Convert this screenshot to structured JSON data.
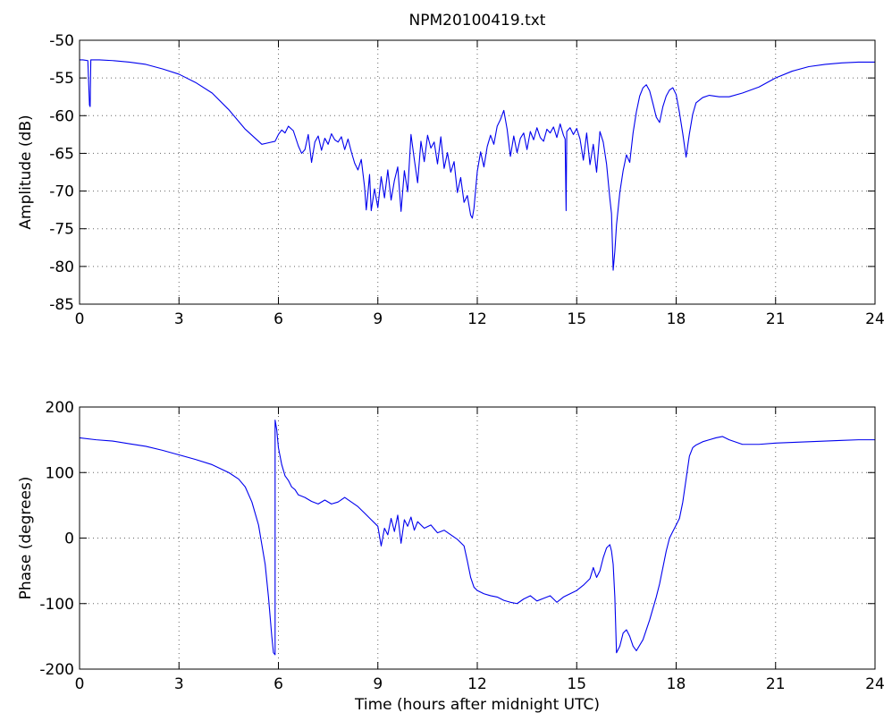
{
  "figure": {
    "title": "NPM20100419.txt"
  },
  "chart_data": [
    {
      "type": "line",
      "title": "NPM20100419.txt",
      "xlabel": "",
      "ylabel": "Amplitude (dB)",
      "xlim": [
        0,
        24
      ],
      "ylim": [
        -85,
        -50
      ],
      "xticks": [
        "0",
        "3",
        "6",
        "9",
        "12",
        "15",
        "18",
        "21",
        "24"
      ],
      "yticks": [
        "-50",
        "-55",
        "-60",
        "-65",
        "-70",
        "-75",
        "-80",
        "-85"
      ],
      "grid": true,
      "color": "#0000ee",
      "series": [
        {
          "x": [
            0,
            0.1,
            0.25,
            0.3,
            0.32,
            0.34,
            0.36,
            0.4,
            0.6,
            1.0,
            1.5,
            2.0,
            2.5,
            3.0,
            3.5,
            4.0,
            4.5,
            5.0,
            5.3,
            5.5,
            5.7,
            5.9,
            6.0,
            6.1,
            6.2,
            6.3,
            6.45,
            6.6,
            6.7,
            6.8,
            6.9,
            7.0,
            7.1,
            7.2,
            7.3,
            7.4,
            7.5,
            7.6,
            7.7,
            7.8,
            7.9,
            8.0,
            8.1,
            8.2,
            8.3,
            8.4,
            8.5,
            8.6,
            8.65,
            8.7,
            8.75,
            8.8,
            8.9,
            9.0,
            9.1,
            9.2,
            9.3,
            9.4,
            9.5,
            9.6,
            9.7,
            9.8,
            9.9,
            10.0,
            10.1,
            10.2,
            10.3,
            10.4,
            10.5,
            10.6,
            10.7,
            10.8,
            10.9,
            11.0,
            11.1,
            11.2,
            11.3,
            11.4,
            11.5,
            11.6,
            11.7,
            11.8,
            11.85,
            11.9,
            12.0,
            12.1,
            12.2,
            12.3,
            12.4,
            12.5,
            12.6,
            12.7,
            12.8,
            12.9,
            13.0,
            13.1,
            13.2,
            13.3,
            13.4,
            13.5,
            13.6,
            13.7,
            13.8,
            13.9,
            14.0,
            14.1,
            14.2,
            14.3,
            14.4,
            14.5,
            14.6,
            14.65,
            14.68,
            14.7,
            14.8,
            14.9,
            15.0,
            15.1,
            15.2,
            15.3,
            15.4,
            15.5,
            15.6,
            15.7,
            15.8,
            15.9,
            16.0,
            16.05,
            16.1,
            16.15,
            16.2,
            16.3,
            16.4,
            16.5,
            16.6,
            16.7,
            16.8,
            16.9,
            17.0,
            17.1,
            17.2,
            17.3,
            17.4,
            17.5,
            17.6,
            17.7,
            17.8,
            17.9,
            18.0,
            18.1,
            18.2,
            18.3,
            18.4,
            18.5,
            18.6,
            18.8,
            19.0,
            19.3,
            19.6,
            20.0,
            20.5,
            21.0,
            21.5,
            22.0,
            22.5,
            23.0,
            23.5,
            24.0
          ],
          "y": [
            -52.6,
            -52.6,
            -52.7,
            -58.6,
            -58.8,
            -52.6,
            -52.6,
            -52.6,
            -52.6,
            -52.7,
            -52.9,
            -53.2,
            -53.8,
            -54.5,
            -55.6,
            -57.0,
            -59.2,
            -61.8,
            -63.0,
            -63.8,
            -63.6,
            -63.4,
            -62.5,
            -61.9,
            -62.3,
            -61.4,
            -62.0,
            -64.0,
            -65.0,
            -64.5,
            -62.5,
            -66.2,
            -63.5,
            -62.7,
            -64.6,
            -63.0,
            -63.8,
            -62.4,
            -63.2,
            -63.5,
            -62.8,
            -64.5,
            -63.1,
            -64.8,
            -66.3,
            -67.2,
            -65.8,
            -69.5,
            -72.5,
            -70.3,
            -67.8,
            -72.6,
            -69.7,
            -72.2,
            -68.1,
            -70.9,
            -67.2,
            -71.2,
            -68.6,
            -66.8,
            -72.7,
            -67.3,
            -70.1,
            -62.5,
            -65.8,
            -68.9,
            -63.4,
            -66.1,
            -62.6,
            -64.3,
            -63.5,
            -66.4,
            -62.8,
            -67.0,
            -64.9,
            -67.5,
            -66.1,
            -70.2,
            -68.2,
            -71.5,
            -70.6,
            -73.2,
            -73.6,
            -72.3,
            -67.4,
            -64.8,
            -66.8,
            -64.1,
            -62.6,
            -63.8,
            -61.4,
            -60.5,
            -59.3,
            -61.8,
            -65.4,
            -62.7,
            -64.9,
            -63.0,
            -62.3,
            -64.5,
            -62.1,
            -63.2,
            -61.6,
            -62.9,
            -63.4,
            -61.8,
            -62.3,
            -61.5,
            -62.9,
            -61.1,
            -62.6,
            -63.1,
            -72.6,
            -62.1,
            -61.6,
            -62.5,
            -61.7,
            -63.1,
            -65.9,
            -62.3,
            -66.5,
            -63.8,
            -67.5,
            -62.1,
            -63.5,
            -66.4,
            -71.0,
            -73.0,
            -80.5,
            -78.0,
            -74.5,
            -70.2,
            -67.3,
            -65.2,
            -66.2,
            -62.3,
            -59.5,
            -57.4,
            -56.3,
            -55.9,
            -56.7,
            -58.4,
            -60.2,
            -60.9,
            -58.8,
            -57.4,
            -56.6,
            -56.3,
            -57.2,
            -59.6,
            -62.4,
            -65.5,
            -62.4,
            -59.8,
            -58.3,
            -57.6,
            -57.3,
            -57.5,
            -57.5,
            -57.0,
            -56.2,
            -55.0,
            -54.1,
            -53.5,
            -53.2,
            -53.0,
            -52.9,
            -52.9
          ]
        }
      ]
    },
    {
      "type": "line",
      "title": "",
      "xlabel": "Time (hours after midnight UTC)",
      "ylabel": "Phase (degrees)",
      "xlim": [
        0,
        24
      ],
      "ylim": [
        -200,
        200
      ],
      "xticks": [
        "0",
        "3",
        "6",
        "9",
        "12",
        "15",
        "18",
        "21",
        "24"
      ],
      "yticks": [
        "200",
        "100",
        "0",
        "-100",
        "-200"
      ],
      "grid": true,
      "color": "#0000ee",
      "series": [
        {
          "x": [
            0,
            0.5,
            1.0,
            1.5,
            2.0,
            2.5,
            3.0,
            3.5,
            4.0,
            4.5,
            4.8,
            5.0,
            5.2,
            5.4,
            5.6,
            5.7,
            5.8,
            5.85,
            5.9,
            5.9,
            5.95,
            6.0,
            6.1,
            6.2,
            6.3,
            6.4,
            6.5,
            6.6,
            6.8,
            7.0,
            7.2,
            7.4,
            7.6,
            7.8,
            8.0,
            8.2,
            8.4,
            8.6,
            8.8,
            9.0,
            9.1,
            9.2,
            9.3,
            9.4,
            9.5,
            9.6,
            9.7,
            9.8,
            9.9,
            10.0,
            10.1,
            10.2,
            10.4,
            10.6,
            10.8,
            11.0,
            11.2,
            11.4,
            11.6,
            11.7,
            11.8,
            11.9,
            12.0,
            12.2,
            12.4,
            12.6,
            12.8,
            13.0,
            13.2,
            13.4,
            13.6,
            13.8,
            14.0,
            14.2,
            14.4,
            14.6,
            14.8,
            15.0,
            15.2,
            15.4,
            15.5,
            15.6,
            15.7,
            15.8,
            15.9,
            16.0,
            16.05,
            16.1,
            16.15,
            16.2,
            16.3,
            16.4,
            16.5,
            16.6,
            16.7,
            16.8,
            17.0,
            17.2,
            17.4,
            17.5,
            17.6,
            17.7,
            17.8,
            17.9,
            18.0,
            18.1,
            18.2,
            18.3,
            18.4,
            18.5,
            18.6,
            18.8,
            19.0,
            19.2,
            19.4,
            19.6,
            20.0,
            20.5,
            21.0,
            21.5,
            22.0,
            22.5,
            23.0,
            23.5,
            24.0
          ],
          "y": [
            153,
            150,
            148,
            144,
            140,
            134,
            127,
            120,
            112,
            100,
            90,
            78,
            55,
            20,
            -40,
            -90,
            -150,
            -175,
            -178,
            180,
            165,
            138,
            112,
            95,
            88,
            78,
            74,
            66,
            62,
            56,
            52,
            58,
            52,
            55,
            62,
            55,
            48,
            38,
            28,
            18,
            -12,
            15,
            5,
            30,
            10,
            35,
            -8,
            28,
            18,
            32,
            12,
            25,
            15,
            20,
            8,
            12,
            5,
            -2,
            -12,
            -35,
            -60,
            -75,
            -80,
            -85,
            -88,
            -90,
            -95,
            -98,
            -100,
            -93,
            -88,
            -96,
            -92,
            -88,
            -98,
            -90,
            -85,
            -80,
            -72,
            -62,
            -45,
            -60,
            -50,
            -30,
            -15,
            -10,
            -20,
            -40,
            -90,
            -175,
            -165,
            -145,
            -140,
            -150,
            -165,
            -172,
            -155,
            -125,
            -90,
            -70,
            -45,
            -20,
            0,
            10,
            20,
            30,
            55,
            90,
            125,
            138,
            142,
            147,
            150,
            153,
            155,
            150,
            143,
            143,
            145,
            146,
            147,
            148,
            149,
            150,
            150
          ]
        }
      ]
    }
  ]
}
